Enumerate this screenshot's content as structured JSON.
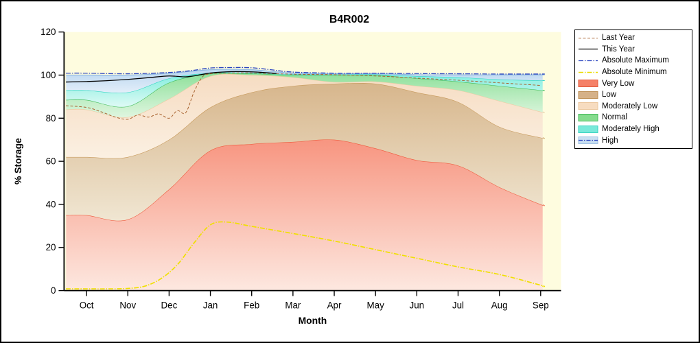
{
  "figure": {
    "background": "#FFFFFF",
    "border_color": "#000000"
  },
  "chart_data": {
    "type": "area",
    "title": "B4R002",
    "xlabel": "Month",
    "ylabel": "% Storage",
    "ylim": [
      0,
      120
    ],
    "y_ticks": [
      0,
      20,
      40,
      60,
      80,
      100,
      120
    ],
    "categories": [
      "Oct",
      "Nov",
      "Dec",
      "Jan",
      "Feb",
      "Mar",
      "Apr",
      "May",
      "Jun",
      "Jul",
      "Aug",
      "Sep"
    ],
    "plot_bg": "#FEFCDF",
    "axis_color": "#000000",
    "legend_position": "right",
    "grid": false,
    "bands": [
      {
        "name": "Very Low",
        "edge": "#EE5B3E",
        "fill_top": "#F79580",
        "fill_bottom": "#FDE8E0",
        "values": [
          35,
          33,
          47,
          65,
          68,
          69,
          70,
          66,
          60.5,
          58,
          48,
          40
        ]
      },
      {
        "name": "Low",
        "edge": "#C79A5C",
        "fill_top": "#D7B68C",
        "fill_bottom": "#F0E6D2",
        "values": [
          62,
          62,
          70,
          85,
          92,
          95,
          96,
          96,
          92,
          87.5,
          76,
          71
        ]
      },
      {
        "name": "Moderately Low",
        "edge": "#EECBA4",
        "fill_top": "#F6DCC2",
        "fill_bottom": "#FBF0E2",
        "values": [
          84,
          80.5,
          89,
          99.5,
          100,
          99,
          96.8,
          97,
          95,
          93,
          88,
          83
        ]
      },
      {
        "name": "Normal",
        "edge": "#3FBB58",
        "fill_top": "#8EE09A",
        "fill_bottom": "#DFF6E0",
        "values": [
          88.5,
          85.5,
          96.5,
          100.6,
          100.7,
          100,
          100,
          100,
          98.5,
          97,
          95,
          93
        ]
      },
      {
        "name": "Moderately High",
        "edge": "#2FD6C2",
        "fill_top": "#7FEDDE",
        "fill_bottom": "#DFFAF5",
        "values": [
          93,
          92,
          98.5,
          101,
          101,
          100.4,
          100.3,
          100.3,
          99.5,
          99,
          98,
          97.5
        ]
      },
      {
        "name": "High",
        "edge": "#8FB8E0",
        "fill_top": "#B9D6F0",
        "fill_bottom": "#E3EEF9",
        "values": [
          100,
          100,
          100.8,
          102.5,
          102.5,
          100.9,
          100.6,
          100.6,
          100.2,
          100.1,
          100.1,
          100.1
        ]
      }
    ],
    "lines": [
      {
        "name": "Absolute Minimum",
        "color": "#F0E000",
        "dash": "7 2 1.5 2",
        "width": 1.7,
        "x": [
          -0.5,
          0,
          0.5,
          1,
          1.4,
          1.8,
          2.2,
          2.6,
          3,
          3.4,
          4,
          5,
          6,
          7,
          8,
          9,
          10,
          11,
          11.05
        ],
        "v": [
          0.8,
          0.8,
          0.8,
          1,
          2,
          5.5,
          12,
          22,
          30.5,
          31.8,
          29.8,
          26.5,
          23,
          19,
          15,
          11,
          7.5,
          2.5,
          2
        ]
      },
      {
        "name": "Last Year",
        "color": "#A8622F",
        "dash": "4 2.5",
        "width": 1,
        "x": [
          -0.5,
          0,
          0.35,
          0.7,
          1,
          1.25,
          1.5,
          1.75,
          2,
          2.2,
          2.4,
          2.6,
          2.8,
          3,
          3.5,
          4,
          5,
          6,
          7,
          8,
          9,
          10,
          11
        ],
        "v": [
          85.8,
          85,
          83,
          80.5,
          79.5,
          81.5,
          80.5,
          82,
          80,
          83.5,
          82.5,
          92,
          99,
          100.6,
          101,
          101,
          100.4,
          100.2,
          99.6,
          98.6,
          97.6,
          96.4,
          95.2
        ]
      },
      {
        "name": "This Year",
        "color": "#000000",
        "dash": "",
        "width": 1.3,
        "x": [
          -0.5,
          0,
          0.5,
          1,
          1.5,
          2,
          2.4,
          2.8,
          3,
          3.5,
          4,
          4.6
        ],
        "v": [
          96.8,
          97,
          97.4,
          98,
          98.8,
          99.6,
          99.2,
          100.3,
          101,
          101.6,
          101.5,
          100.8
        ]
      },
      {
        "name": "Absolute Maximum",
        "color": "#2943BF",
        "dash": "7 2 1.5 2",
        "width": 1.3,
        "x": [
          -0.5,
          0,
          1,
          2,
          2.5,
          3,
          3.5,
          4,
          4.5,
          5,
          6,
          7,
          8,
          9,
          10,
          11,
          11.05
        ],
        "v": [
          100.9,
          100.9,
          100.6,
          101.2,
          102,
          103.3,
          103.5,
          103.4,
          102.4,
          101.4,
          100.9,
          100.9,
          100.7,
          100.6,
          100.5,
          100.5,
          100.5
        ]
      }
    ],
    "legend_items": [
      {
        "label": "Last Year",
        "sample": "line",
        "color": "#A8622F",
        "dash": "4 2.5",
        "width": 1
      },
      {
        "label": "This Year",
        "sample": "line",
        "color": "#000000",
        "dash": "",
        "width": 1.3
      },
      {
        "label": "Absolute Maximum",
        "sample": "line",
        "color": "#2943BF",
        "dash": "7 2 1.5 2",
        "width": 1.3
      },
      {
        "label": "Absolute Minimum",
        "sample": "line",
        "color": "#EBDB00",
        "dash": "7 2 1.5 2",
        "width": 1.6
      },
      {
        "label": "Very Low",
        "sample": "band",
        "fill": "#F58168",
        "edge": "#E25A3C"
      },
      {
        "label": "Low",
        "sample": "band",
        "fill": "#D5B188",
        "edge": "#BD8F55"
      },
      {
        "label": "Moderately Low",
        "sample": "band",
        "fill": "#F7DCC0",
        "edge": "#EBC79E"
      },
      {
        "label": "Normal",
        "sample": "band",
        "fill": "#85DC8E",
        "edge": "#49BB5E"
      },
      {
        "label": "Moderately High",
        "sample": "band",
        "fill": "#79E9DA",
        "edge": "#35D3C0"
      },
      {
        "label": "High",
        "sample": "band-line",
        "fill": "#C9DFF2",
        "edge": "#9FC2E4",
        "color": "#2943BF",
        "dash": "6 2 1.5 2",
        "width": 1.2
      }
    ]
  }
}
